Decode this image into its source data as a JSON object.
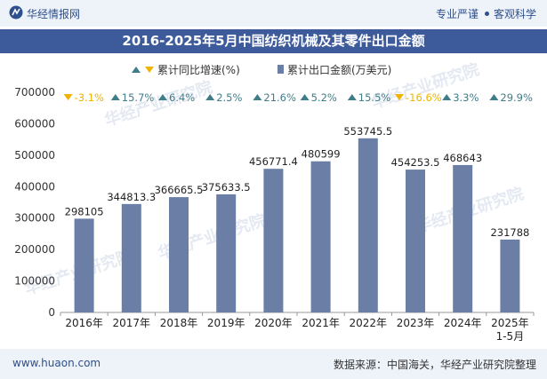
{
  "header": {
    "brand": "华经情报网",
    "tag_professional": "专业严谨",
    "tag_objective": "客观科学"
  },
  "title": "2016-2025年5月中国纺织机械及其零件出口金额",
  "legend": {
    "growth": "累计同比增速(%)",
    "amount": "累计出口金额(万美元)"
  },
  "footer": {
    "url": "www.huaon.com",
    "source": "数据来源：中国海关，华经产业研究院整理"
  },
  "watermark": "华经产业研究院",
  "colors": {
    "bar": "#6b7fa6",
    "up": "#3f7d8a",
    "down": "#f0b400",
    "brand": "#2d4f8c"
  },
  "chart_data": {
    "type": "bar",
    "categories": [
      "2016年",
      "2017年",
      "2018年",
      "2019年",
      "2020年",
      "2021年",
      "2022年",
      "2023年",
      "2024年",
      "2025年\n1-5月"
    ],
    "series": [
      {
        "name": "累计出口金额(万美元)",
        "values": [
          298105,
          344813.3,
          366665.5,
          375633.5,
          456771.4,
          480599,
          553745.5,
          454253.5,
          468643,
          231788
        ],
        "labels": [
          "298105",
          "344813.3",
          "366665.5",
          "375633.5",
          "456771.4",
          "480599",
          "553745.5",
          "454253.5",
          "468643",
          "231788"
        ]
      },
      {
        "name": "累计同比增速(%)",
        "labels": [
          "-3.1%",
          "15.7%",
          "6.4%",
          "2.5%",
          "21.6%",
          "5.2%",
          "15.5%",
          "-16.6%",
          "3.3%",
          "29.9%"
        ],
        "values": [
          -3.1,
          15.7,
          6.4,
          2.5,
          21.6,
          5.2,
          15.5,
          -16.6,
          3.3,
          29.9
        ]
      }
    ],
    "yticks": [
      "0",
      "100000",
      "200000",
      "300000",
      "400000",
      "500000",
      "600000",
      "700000"
    ],
    "ylim": [
      0,
      700000
    ],
    "grid": false,
    "legend_position": "top-center"
  }
}
